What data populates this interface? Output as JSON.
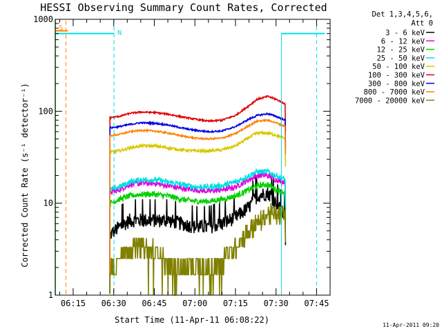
{
  "chart_data": {
    "type": "line",
    "title": "HESSI Observing Summary Count Rates, Corrected",
    "xlabel": "Start Time (11-Apr-11 06:08:22)",
    "ylabel": "Corrected Count Rate (s⁻¹ detector⁻¹)",
    "yscale": "log",
    "ylim": [
      1,
      1000
    ],
    "xlim_minutes": [
      368.37,
      470.0
    ],
    "x_ticks": [
      "06:15",
      "06:30",
      "06:45",
      "07:00",
      "07:15",
      "07:30",
      "07:45"
    ],
    "x_tick_minutes": [
      375,
      390,
      405,
      420,
      435,
      450,
      465
    ],
    "y_ticks": [
      "1",
      "10",
      "100",
      "1000"
    ],
    "y_tick_values": [
      1,
      10,
      100,
      1000
    ],
    "grid": false,
    "legend_position": "outside-right",
    "legend_header": [
      "Det 1,3,4,5,6,",
      "Att 0"
    ],
    "x_minutes": [
      388.6,
      392,
      396,
      400,
      405,
      410,
      415,
      420,
      425,
      430,
      435,
      440,
      443,
      447,
      450,
      453.5
    ],
    "series": [
      {
        "name": "3 - 6 keV",
        "color": "#000000",
        "values": [
          4.5,
          5.5,
          6.5,
          6.5,
          6.5,
          6.5,
          6,
          5.5,
          5.5,
          6,
          7,
          9,
          12,
          13,
          10,
          7
        ]
      },
      {
        "name": "6 - 12 keV",
        "color": "#e000e0",
        "values": [
          13,
          14,
          16,
          16.5,
          16.5,
          15.5,
          14.5,
          14,
          13.5,
          14,
          15,
          18,
          20,
          20,
          18,
          17
        ]
      },
      {
        "name": "12 - 25 keV",
        "color": "#00d000",
        "values": [
          10,
          11,
          12,
          12.5,
          12.5,
          12,
          11,
          10.5,
          10.5,
          11,
          12,
          14,
          15.5,
          16,
          14,
          13
        ]
      },
      {
        "name": "25 - 50 keV",
        "color": "#00e0e0",
        "values": [
          14,
          15,
          17,
          18,
          18,
          17,
          16,
          15,
          15,
          15.5,
          17,
          20,
          22,
          22,
          20,
          18
        ]
      },
      {
        "name": "50 - 100 keV",
        "color": "#d8c800",
        "values": [
          36,
          37,
          40,
          42,
          42,
          40,
          38,
          37,
          37,
          38,
          42,
          52,
          58,
          58,
          55,
          50
        ]
      },
      {
        "name": "100 - 300 keV",
        "color": "#e00000",
        "values": [
          85,
          88,
          95,
          98,
          97,
          93,
          87,
          82,
          78,
          80,
          90,
          115,
          135,
          145,
          135,
          120
        ]
      },
      {
        "name": "300 - 800 keV",
        "color": "#0000e0",
        "values": [
          66,
          68,
          72,
          75,
          74,
          71,
          66,
          62,
          60,
          61,
          68,
          82,
          90,
          94,
          88,
          80
        ]
      },
      {
        "name": "800 - 7000 keV",
        "color": "#ff8000",
        "values": [
          54,
          56,
          60,
          62,
          61,
          58,
          54,
          51,
          50,
          51,
          57,
          70,
          78,
          80,
          75,
          68
        ]
      },
      {
        "name": "7000 - 20000 keV",
        "color": "#808000",
        "values": [
          1.8,
          2.7,
          3.3,
          3.5,
          3.0,
          2.3,
          2.0,
          1.8,
          1.9,
          2.4,
          3.5,
          5.0,
          6.0,
          7.5,
          7.5,
          7.5
        ]
      }
    ],
    "markers": {
      "green_line_minute": 368.4,
      "orange_dashed_minute": 372.3,
      "cyan_dashed_minutes": [
        390.1,
        465.0
      ],
      "cyan_solid_minute": 452.0,
      "cyan_bar_value": 700,
      "cyan_bar_ranges": [
        [
          368.4,
          390.1
        ],
        [
          452.0,
          468.0
        ]
      ],
      "s_marker_value": 750,
      "s_label": "S",
      "n_label": "N"
    },
    "timestamp": "11-Apr-2011 09:20"
  }
}
